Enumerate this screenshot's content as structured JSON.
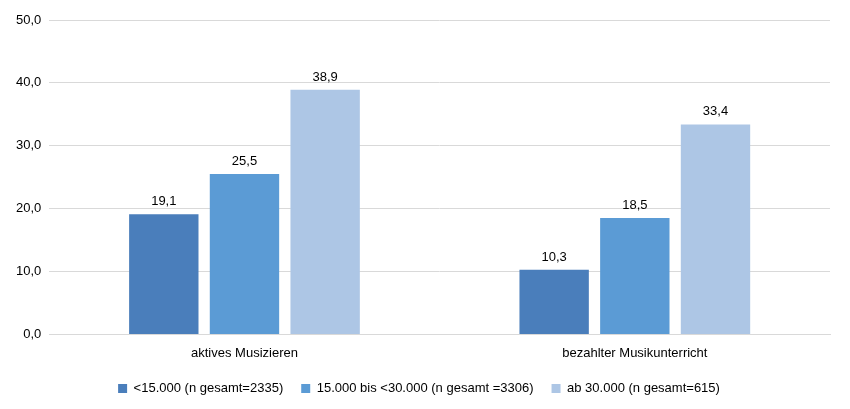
{
  "chart_data": {
    "type": "bar",
    "categories": [
      "aktives Musizieren",
      "bezahlter Musikunterricht"
    ],
    "series": [
      {
        "name": "<15.000 (n gesamt=2335)",
        "color": "#4a7ebb",
        "values": [
          19.1,
          10.3
        ],
        "value_labels": [
          "19,1",
          "10,3"
        ]
      },
      {
        "name": "15.000 bis <30.000 (n gesamt =3306)",
        "color": "#5b9bd5",
        "values": [
          25.5,
          18.5
        ],
        "value_labels": [
          "25,5",
          "18,5"
        ]
      },
      {
        "name": "ab 30.000 (n gesamt=615)",
        "color": "#adc6e5",
        "values": [
          38.9,
          33.4
        ],
        "value_labels": [
          "38,9",
          "33,4"
        ]
      }
    ],
    "ylim": [
      0,
      50
    ],
    "yticks": [
      {
        "value": 0,
        "label": "0,0"
      },
      {
        "value": 10,
        "label": "10,0"
      },
      {
        "value": 20,
        "label": "20,0"
      },
      {
        "value": 30,
        "label": "30,0"
      },
      {
        "value": 40,
        "label": "40,0"
      },
      {
        "value": 50,
        "label": "50,0"
      }
    ],
    "grid": true,
    "legend": "bottom",
    "data_labels": true
  }
}
